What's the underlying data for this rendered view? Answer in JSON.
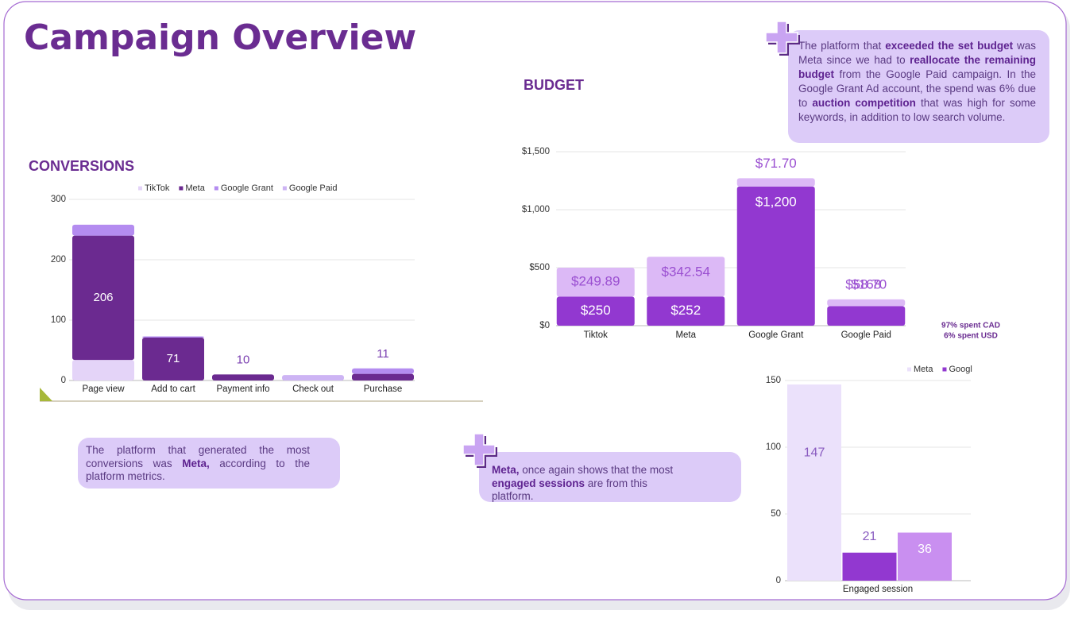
{
  "title": "Campaign Overview",
  "notes": [
    {
      "parts": [
        {
          "text": "The platform that "
        },
        {
          "text": "exceeded the set budget",
          "bold": true
        },
        {
          "text": " was Meta since we had to "
        },
        {
          "text": "reallocate the remaining budget",
          "bold": true
        },
        {
          "text": " from the Google Paid campaign. In the Google Grant Ad account, the spend was 6% due to "
        },
        {
          "text": "auction competition",
          "bold": true
        },
        {
          "text": " that was high for some keywords, in addition to low search volume."
        }
      ]
    },
    {
      "parts": [
        {
          "text": "The platform that generated the most conversions was "
        },
        {
          "text": "Meta,",
          "bold": true
        },
        {
          "text": " according to the platform metrics."
        }
      ]
    },
    {
      "parts": [
        {
          "text": "Meta,",
          "bold": true
        },
        {
          "text": " once again shows that the most "
        },
        {
          "text": "engaged sessions",
          "bold": true
        },
        {
          "text": " are from this platform."
        }
      ]
    }
  ],
  "chart_data": [
    {
      "type": "bar",
      "stacked": true,
      "title": "CONVERSIONS",
      "categories": [
        "Page view",
        "Add to cart",
        "Payment info",
        "Check out",
        "Purchase"
      ],
      "series": [
        {
          "name": "TikTok",
          "color": "#e4d4f8",
          "values": [
            34,
            null,
            null,
            null,
            null
          ]
        },
        {
          "name": "Meta",
          "color": "#6b2a90",
          "values": [
            206,
            71,
            10,
            null,
            11
          ],
          "labels": true
        },
        {
          "name": "Google Grant",
          "color": "#b48cf0",
          "values": [
            18,
            2,
            null,
            null,
            9
          ]
        },
        {
          "name": "Google Paid",
          "color": "#cdb4f4",
          "values": [
            null,
            null,
            null,
            9,
            null
          ]
        }
      ],
      "ylim": [
        0,
        300
      ],
      "yticks": [
        0,
        100,
        200,
        300
      ],
      "grid": true
    },
    {
      "type": "bar",
      "stacked": true,
      "title": "BUDGET",
      "categories": [
        "Tiktok",
        "Meta",
        "Google Grant",
        "Google Paid"
      ],
      "series": [
        {
          "color": "#9238d0",
          "values": [
            250,
            252,
            1200,
            168
          ],
          "value_labels": [
            "$250",
            "$252",
            "$1,200",
            "$168"
          ]
        },
        {
          "color": "#dcb9f6",
          "values": [
            249.89,
            342.54,
            71.7,
            58.7
          ],
          "value_labels": [
            "$249.89",
            "$342.54",
            "$71.70",
            "$58.70"
          ]
        }
      ],
      "ylim": [
        0,
        1500
      ],
      "yticks": [
        {
          "value": 0,
          "label": "$0"
        },
        {
          "value": 500,
          "label": "$500"
        },
        {
          "value": 1000,
          "label": "$1,000"
        },
        {
          "value": 1500,
          "label": "$1,500"
        }
      ],
      "grid": true,
      "annotations": [
        "97% spent CAD",
        "6% spent USD"
      ]
    },
    {
      "type": "bar",
      "stacked": false,
      "categories": [
        "Engaged session"
      ],
      "series": [
        {
          "name": "Meta",
          "color": "#ebe1fb",
          "values": [
            147
          ],
          "labels": true
        },
        {
          "name": "Googl",
          "color": "#9238d0",
          "values": [
            21
          ],
          "labels": true
        },
        {
          "color": "#c98ff0",
          "values": [
            36
          ],
          "labels": true
        }
      ],
      "ylim": [
        0,
        150
      ],
      "yticks": [
        0,
        50,
        100,
        150
      ],
      "grid": true
    }
  ]
}
